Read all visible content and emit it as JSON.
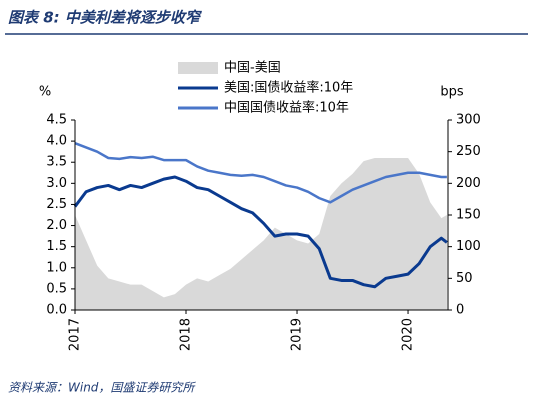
{
  "chart_data": {
    "type": "line",
    "title": "图表 8:  中美利差将逐步收窄",
    "source": "资料来源：Wind，国盛证券研究所",
    "y_label": "%",
    "y2_label": "bps",
    "x": [
      2017.0,
      2017.1,
      2017.2,
      2017.3,
      2017.4,
      2017.5,
      2017.6,
      2017.7,
      2017.8,
      2017.9,
      2018.0,
      2018.1,
      2018.2,
      2018.3,
      2018.4,
      2018.5,
      2018.6,
      2018.7,
      2018.8,
      2018.9,
      2019.0,
      2019.1,
      2019.2,
      2019.3,
      2019.4,
      2019.5,
      2019.6,
      2019.7,
      2019.8,
      2019.9,
      2020.0,
      2020.1,
      2020.2,
      2020.3,
      2020.35
    ],
    "xlim": [
      2017,
      2020.36
    ],
    "xticks": [
      2017,
      2018,
      2019,
      2020
    ],
    "ylim": [
      0,
      4.5
    ],
    "yticks": [
      {
        "value": 0,
        "label": "0.0"
      },
      0.5,
      {
        "value": 1,
        "label": "1.0"
      },
      1.5,
      {
        "value": 2,
        "label": "2.0"
      },
      2.5,
      {
        "value": 3,
        "label": "3.0"
      },
      3.5,
      {
        "value": 4,
        "label": "4.0"
      },
      4.5
    ],
    "y2lim": [
      0,
      300
    ],
    "y2ticks": [
      0,
      50,
      100,
      150,
      200,
      250,
      300
    ],
    "series": [
      {
        "name": "中国-美国",
        "type": "area",
        "axis": "y2",
        "color": "#d9d9d9",
        "values": [
          150,
          110,
          70,
          50,
          45,
          40,
          40,
          30,
          20,
          25,
          40,
          50,
          45,
          55,
          65,
          80,
          95,
          110,
          130,
          120,
          110,
          105,
          120,
          180,
          200,
          215,
          235,
          240,
          240,
          240,
          240,
          215,
          170,
          145,
          150
        ]
      },
      {
        "name": "美国:国债收益率:10年",
        "color": "#0a3a8f",
        "values": [
          2.45,
          2.8,
          2.9,
          2.95,
          2.85,
          2.95,
          2.9,
          3.0,
          3.1,
          3.15,
          3.05,
          2.9,
          2.85,
          2.7,
          2.55,
          2.4,
          2.3,
          2.05,
          1.75,
          1.8,
          1.8,
          1.75,
          1.45,
          0.75,
          0.7,
          0.7,
          0.6,
          0.55,
          0.75,
          0.8,
          0.85,
          1.1,
          1.5,
          1.7,
          1.6
        ]
      },
      {
        "name": "中国国债收益率:10年",
        "color": "#4a76c9",
        "values": [
          3.95,
          3.85,
          3.75,
          3.6,
          3.58,
          3.62,
          3.6,
          3.63,
          3.55,
          3.55,
          3.55,
          3.4,
          3.3,
          3.25,
          3.2,
          3.18,
          3.2,
          3.15,
          3.05,
          2.95,
          2.9,
          2.8,
          2.65,
          2.55,
          2.7,
          2.85,
          2.95,
          3.05,
          3.15,
          3.2,
          3.25,
          3.25,
          3.2,
          3.15,
          3.15
        ]
      }
    ]
  }
}
